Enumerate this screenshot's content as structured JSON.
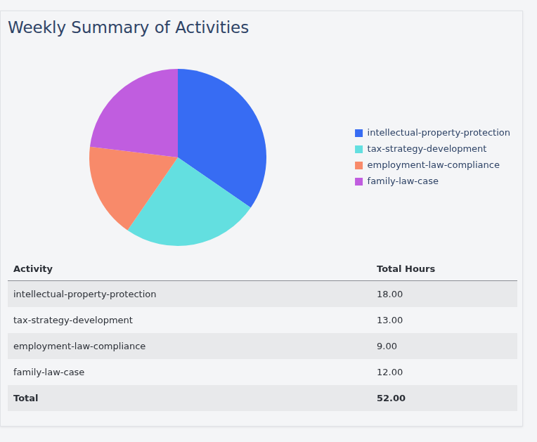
{
  "header": {
    "title": "Weekly Summary of Activities"
  },
  "chart_data": {
    "type": "pie",
    "categories": [
      "intellectual-property-protection",
      "tax-strategy-development",
      "employment-law-compliance",
      "family-law-case"
    ],
    "values": [
      18,
      13,
      9,
      12
    ],
    "colors": [
      "#376cf3",
      "#63dfe0",
      "#f88a6a",
      "#c05ddf"
    ],
    "legend": "right"
  },
  "table": {
    "columns": [
      "Activity",
      "Total Hours"
    ],
    "rows": [
      [
        "intellectual-property-protection",
        "18.00"
      ],
      [
        "tax-strategy-development",
        "13.00"
      ],
      [
        "employment-law-compliance",
        "9.00"
      ],
      [
        "family-law-case",
        "12.00"
      ]
    ],
    "total": [
      "Total",
      "52.00"
    ]
  }
}
